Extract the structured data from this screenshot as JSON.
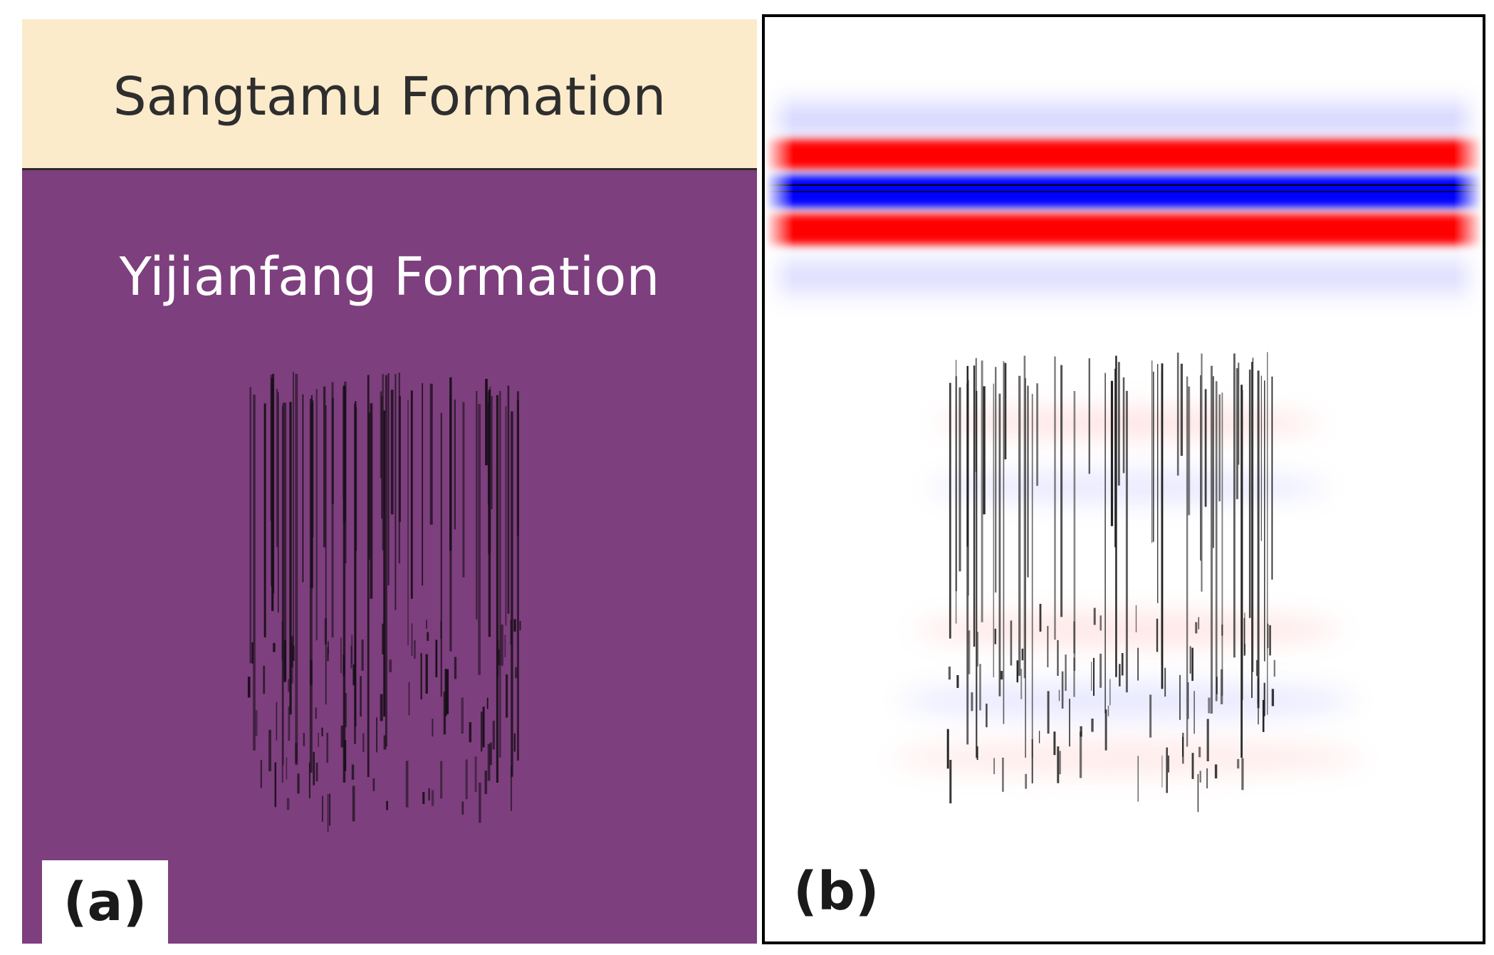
{
  "panel_a": {
    "label": "(a)",
    "upper_layer": "Sangtamu Formation",
    "lower_layer": "Yijianfang Formation",
    "colors": {
      "upper": "#FBEBCB",
      "lower": "#7E3F7E"
    }
  },
  "panel_b": {
    "label": "(b)",
    "colors": {
      "positive": "#FF0000",
      "negative": "#0000FF"
    }
  }
}
